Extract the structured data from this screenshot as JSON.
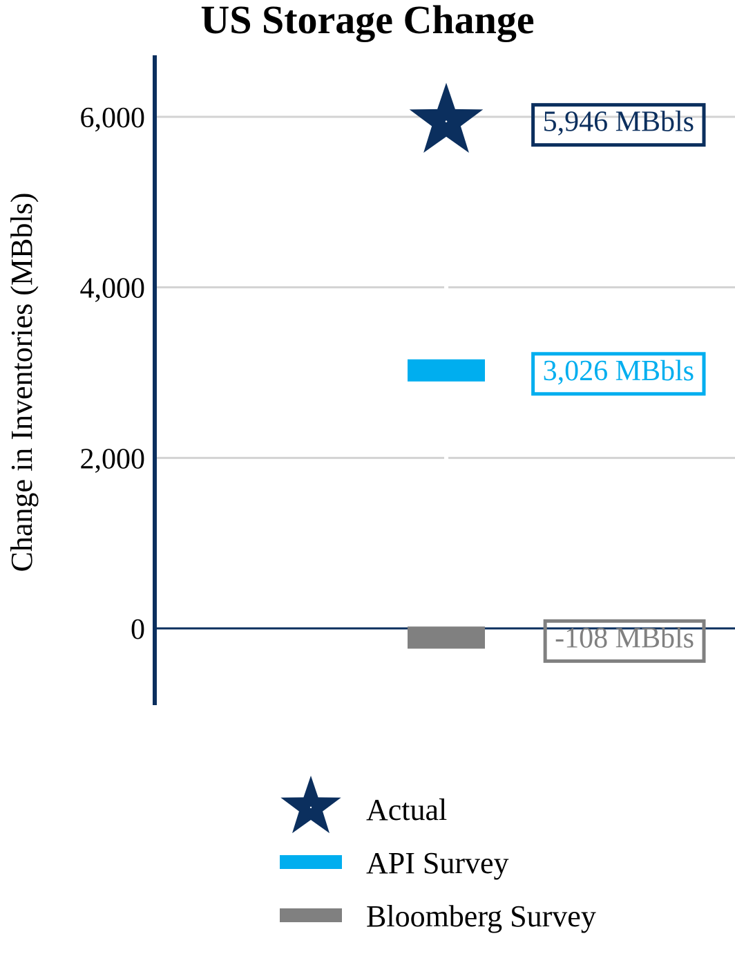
{
  "colors": {
    "navy": "#0b2f5e",
    "cyan": "#00aeef",
    "gray": "#808080",
    "grid": "#d3d3d3"
  },
  "chart_data": {
    "type": "scatter",
    "title": "US Storage Change",
    "xlabel": "",
    "ylabel": "Change in Inventories (MBbls)",
    "ylim": [
      -900,
      6700
    ],
    "yticks": [
      0,
      2000,
      4000,
      6000
    ],
    "ytick_labels": [
      "0",
      "2,000",
      "4,000",
      "6,000"
    ],
    "grid": true,
    "series": [
      {
        "name": "Actual",
        "value": 5946,
        "label": "5,946 MBbls",
        "marker": "star-icon",
        "color": "#0b2f5e"
      },
      {
        "name": "API Survey",
        "value": 3026,
        "label": "3,026 MBbls",
        "marker": "bar",
        "color": "#00aeef"
      },
      {
        "name": "Bloomberg Survey",
        "value": -108,
        "label": "-108 MBbls",
        "marker": "bar",
        "color": "#808080"
      }
    ],
    "legend": {
      "position": "bottom"
    }
  }
}
